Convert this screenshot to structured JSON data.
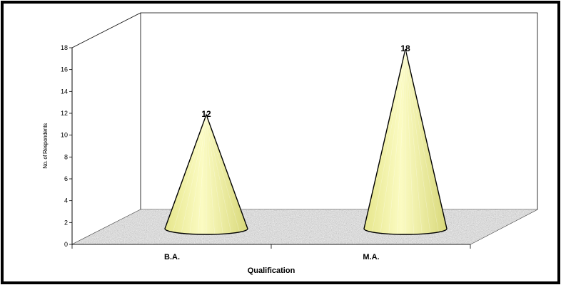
{
  "chart_data": {
    "type": "bar",
    "bar_shape": "3d-cone",
    "categories": [
      "B.A.",
      "M.A."
    ],
    "values": [
      12,
      18
    ],
    "data_labels": [
      "12",
      "18"
    ],
    "xlabel": "Qualification",
    "ylabel": "No. of Respondents",
    "ylim": [
      0,
      18
    ],
    "yticks": [
      "0",
      "2",
      "4",
      "6",
      "8",
      "10",
      "12",
      "14",
      "16",
      "18"
    ],
    "grid": false,
    "legend": "none",
    "colors": {
      "cone_fill": "#f0f0a0",
      "cone_stroke": "#000000",
      "floor_fill": "#a8a8a8",
      "background": "#ffffff"
    }
  }
}
